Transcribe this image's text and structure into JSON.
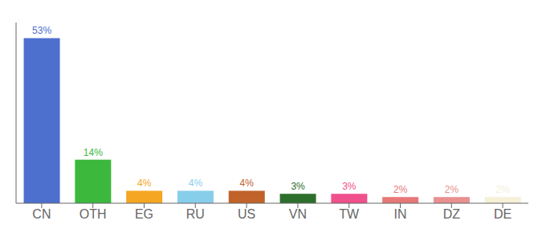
{
  "chart_data": {
    "type": "bar",
    "categories": [
      "CN",
      "OTH",
      "EG",
      "RU",
      "US",
      "VN",
      "TW",
      "IN",
      "DZ",
      "DE"
    ],
    "values": [
      53,
      14,
      4,
      4,
      4,
      3,
      3,
      2,
      2,
      2
    ],
    "value_labels": [
      "53%",
      "14%",
      "4%",
      "4%",
      "4%",
      "3%",
      "3%",
      "2%",
      "2%",
      "2%"
    ],
    "colors": [
      "#4d6fce",
      "#3cb83c",
      "#f5a623",
      "#87ceeb",
      "#c0622a",
      "#2d6e2d",
      "#f0508c",
      "#e87878",
      "#e89090",
      "#f5f0d8"
    ],
    "ylim": [
      0,
      58
    ],
    "data_labels": true,
    "tick_labels": "x",
    "grid": false
  }
}
